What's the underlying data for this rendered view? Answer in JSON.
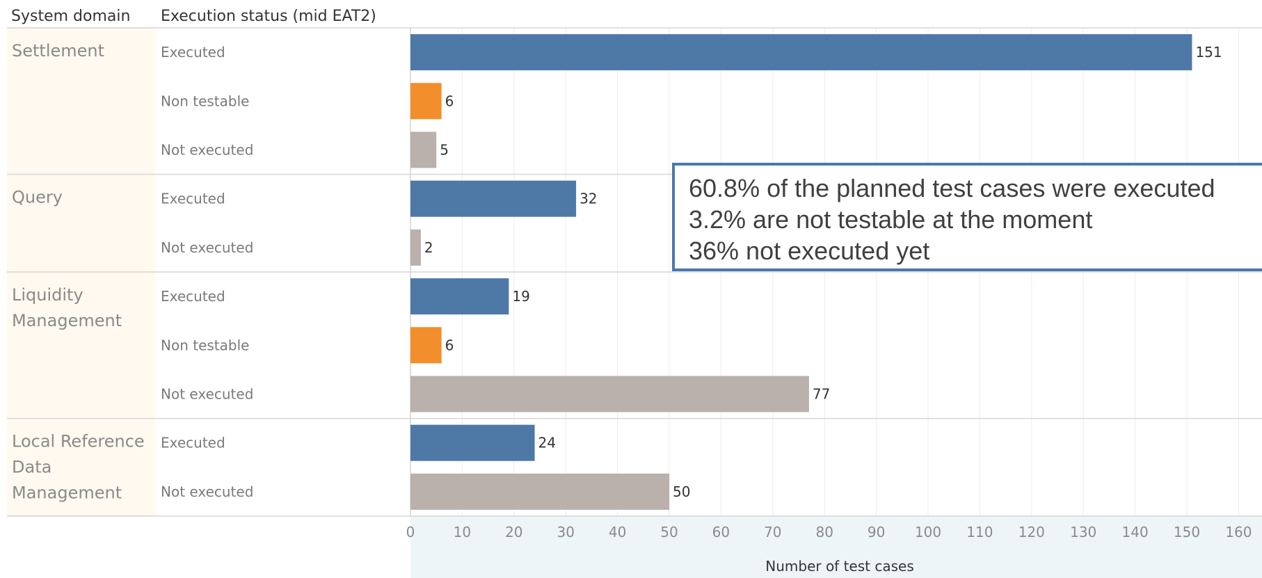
{
  "headers": {
    "domain": "System domain",
    "status": "Execution status (mid EAT2)"
  },
  "chart_data": {
    "type": "bar",
    "orientation": "horizontal",
    "xlabel": "Number of test cases",
    "xlim": [
      0,
      160
    ],
    "xticks": [
      0,
      10,
      20,
      30,
      40,
      50,
      60,
      70,
      80,
      90,
      100,
      110,
      120,
      130,
      140,
      150,
      160
    ],
    "grid": true,
    "colors": {
      "Executed": "#4e79a7",
      "Non testable": "#f28e2b",
      "Not executed": "#bab0ac"
    },
    "groups": [
      {
        "domain": [
          "Settlement"
        ],
        "bars": [
          {
            "status": "Executed",
            "value": 151
          },
          {
            "status": "Non testable",
            "value": 6
          },
          {
            "status": "Not executed",
            "value": 5
          }
        ]
      },
      {
        "domain": [
          "Query"
        ],
        "bars": [
          {
            "status": "Executed",
            "value": 32
          },
          {
            "status": "Not executed",
            "value": 2
          }
        ]
      },
      {
        "domain": [
          "Liquidity",
          "Management"
        ],
        "bars": [
          {
            "status": "Executed",
            "value": 19
          },
          {
            "status": "Non testable",
            "value": 6
          },
          {
            "status": "Not executed",
            "value": 77
          }
        ]
      },
      {
        "domain": [
          "Local Reference",
          "Data",
          "Management"
        ],
        "bars": [
          {
            "status": "Executed",
            "value": 24
          },
          {
            "status": "Not executed",
            "value": 50
          }
        ]
      }
    ]
  },
  "annotation": {
    "lines": [
      "60.8% of the planned test cases were executed",
      "3.2% are not testable at the moment",
      "36% not executed yet"
    ]
  }
}
